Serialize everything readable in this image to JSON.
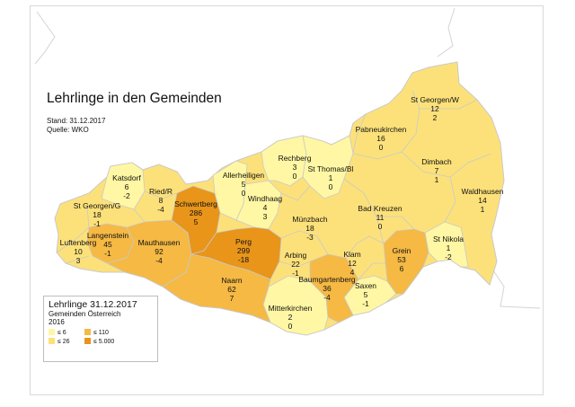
{
  "title": "Lehrlinge in den Gemeinden",
  "meta": {
    "stand": "Stand: 31.12.2017",
    "quelle": "Quelle: WKO"
  },
  "legend": {
    "title": "Lehrlinge 31.12.2017",
    "subtitle_line1": "Gemeinden Österreich",
    "subtitle_line2": "2016",
    "classes": [
      {
        "label": "≤      6",
        "color": "#fff7a3"
      },
      {
        "label": "≤    26",
        "color": "#fce17a"
      },
      {
        "label": "≤    110",
        "color": "#f5b944"
      },
      {
        "label": "≤  5.000",
        "color": "#e8951a"
      }
    ]
  },
  "colors": {
    "lightest": "#fff7a3",
    "light": "#fce17a",
    "medium": "#f5b944",
    "dark": "#e8951a",
    "outside": "#ffffff",
    "border": "#c9c9c9"
  },
  "municipalities": [
    {
      "name": "St Georgen/W",
      "count": "12",
      "change": "2"
    },
    {
      "name": "Pabneukirchen",
      "count": "16",
      "change": "0"
    },
    {
      "name": "Dimbach",
      "count": "7",
      "change": "1"
    },
    {
      "name": "Waldhausen",
      "count": "14",
      "change": "1"
    },
    {
      "name": "Rechberg",
      "count": "3",
      "change": "0"
    },
    {
      "name": "St Thomas/Bl",
      "count": "1",
      "change": "0"
    },
    {
      "name": "Allerheiligen",
      "count": "5",
      "change": "0"
    },
    {
      "name": "Katsdorf",
      "count": "6",
      "change": "-2"
    },
    {
      "name": "Ried/R",
      "count": "8",
      "change": "-4"
    },
    {
      "name": "St Georgen/G",
      "count": "18",
      "change": "-1"
    },
    {
      "name": "Schwertberg",
      "count": "286",
      "change": "5"
    },
    {
      "name": "Windhaag",
      "count": "4",
      "change": "3"
    },
    {
      "name": "Münzbach",
      "count": "18",
      "change": "-3"
    },
    {
      "name": "Bad Kreuzen",
      "count": "11",
      "change": "0"
    },
    {
      "name": "St Nikola",
      "count": "1",
      "change": "-2"
    },
    {
      "name": "Langenstein",
      "count": "45",
      "change": "-1"
    },
    {
      "name": "Luftenberg",
      "count": "10",
      "change": "3"
    },
    {
      "name": "Mauthausen",
      "count": "92",
      "change": "-4"
    },
    {
      "name": "Perg",
      "count": "299",
      "change": "-18"
    },
    {
      "name": "Arbing",
      "count": "22",
      "change": "-1"
    },
    {
      "name": "Klam",
      "count": "12",
      "change": "4"
    },
    {
      "name": "Grein",
      "count": "53",
      "change": "6"
    },
    {
      "name": "Naarn",
      "count": "62",
      "change": "7"
    },
    {
      "name": "Baumgartenberg",
      "count": "36",
      "change": "-4"
    },
    {
      "name": "Saxen",
      "count": "5",
      "change": "-1"
    },
    {
      "name": "Mitterkirchen",
      "count": "2",
      "change": "0"
    }
  ]
}
